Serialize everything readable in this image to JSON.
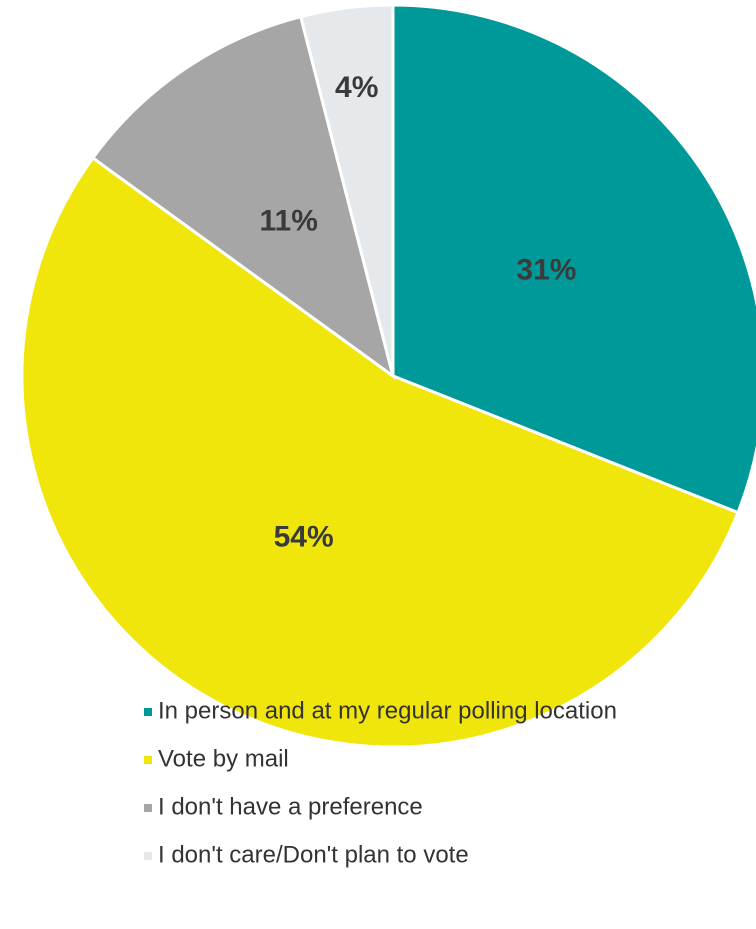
{
  "chart_data": {
    "type": "pie",
    "categories": [
      "In person and at my regular polling location",
      "Vote by mail",
      "I don't have a preference",
      "I don't care/Don't plan to vote"
    ],
    "values": [
      31,
      54,
      11,
      4
    ],
    "value_labels": [
      "31%",
      "54%",
      "11%",
      "4%"
    ],
    "colors": [
      "#009999",
      "#f0e60c",
      "#a6a6a6",
      "#e6e9ec"
    ],
    "legend": "bottom"
  }
}
